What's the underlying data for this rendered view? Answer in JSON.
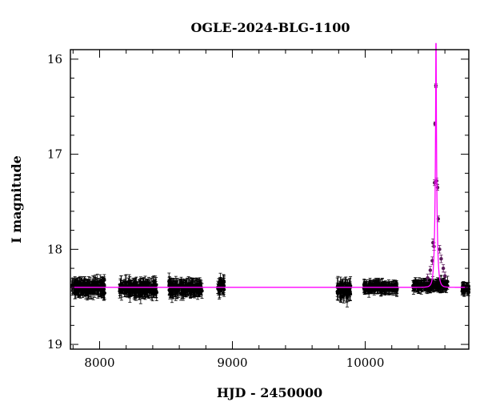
{
  "chart_data": {
    "type": "scatter",
    "title": "OGLE-2024-BLG-1100",
    "xlabel": "HJD - 2450000",
    "ylabel": "I magnitude",
    "xlim": [
      7780,
      10780
    ],
    "ylim": [
      19.05,
      15.9
    ],
    "y_inverted": true,
    "x_ticks": [
      8000,
      9000,
      10000
    ],
    "x_tick_labels": [
      "8000",
      "9000",
      "10000"
    ],
    "y_ticks": [
      16,
      17,
      18,
      19
    ],
    "y_tick_labels": [
      "16",
      "17",
      "18",
      "19"
    ],
    "grid": false,
    "legend": "none",
    "series": [
      {
        "kind": "observations",
        "color": "#000000",
        "error_bars": true,
        "seasons": [
          {
            "x_start": 7790,
            "x_end": 8040,
            "mag": 18.4,
            "scatter": 0.07,
            "err": 0.07
          },
          {
            "x_start": 8150,
            "x_end": 8430,
            "mag": 18.41,
            "scatter": 0.08,
            "err": 0.07
          },
          {
            "x_start": 8520,
            "x_end": 8775,
            "mag": 18.41,
            "scatter": 0.07,
            "err": 0.07
          },
          {
            "x_start": 8890,
            "x_end": 8940,
            "mag": 18.39,
            "scatter": 0.07,
            "err": 0.07
          },
          {
            "x_start": 9790,
            "x_end": 9890,
            "mag": 18.42,
            "scatter": 0.1,
            "err": 0.08
          },
          {
            "x_start": 9990,
            "x_end": 10240,
            "mag": 18.4,
            "scatter": 0.05,
            "err": 0.05
          },
          {
            "x_start": 10360,
            "x_end": 10620,
            "mag": 18.38,
            "scatter": 0.05,
            "err": 0.05
          },
          {
            "x_start": 10725,
            "x_end": 10780,
            "mag": 18.42,
            "scatter": 0.05,
            "err": 0.05
          }
        ]
      },
      {
        "kind": "event_points",
        "color": "#5a1a5a",
        "points": [
          {
            "x": 10470,
            "y": 18.3,
            "err": 0.04
          },
          {
            "x": 10490,
            "y": 18.22,
            "err": 0.04
          },
          {
            "x": 10505,
            "y": 18.12,
            "err": 0.04
          },
          {
            "x": 10510,
            "y": 17.93,
            "err": 0.04
          },
          {
            "x": 10518,
            "y": 17.97,
            "err": 0.04
          },
          {
            "x": 10522,
            "y": 17.3,
            "err": 0.03
          },
          {
            "x": 10526,
            "y": 16.68,
            "err": 0.02
          },
          {
            "x": 10532,
            "y": 16.28,
            "err": 0.02
          },
          {
            "x": 10538,
            "y": 17.28,
            "err": 0.03
          },
          {
            "x": 10545,
            "y": 17.35,
            "err": 0.03
          },
          {
            "x": 10550,
            "y": 17.68,
            "err": 0.03
          },
          {
            "x": 10560,
            "y": 18.0,
            "err": 0.04
          },
          {
            "x": 10572,
            "y": 18.1,
            "err": 0.04
          },
          {
            "x": 10588,
            "y": 18.2,
            "err": 0.04
          },
          {
            "x": 10600,
            "y": 18.28,
            "err": 0.04
          }
        ]
      },
      {
        "kind": "model",
        "color": "#ff00ff",
        "model": {
          "baseline": 18.4,
          "t0": 10533,
          "u0": 0.071,
          "tE": 16,
          "fs": 1.0
        }
      }
    ]
  }
}
